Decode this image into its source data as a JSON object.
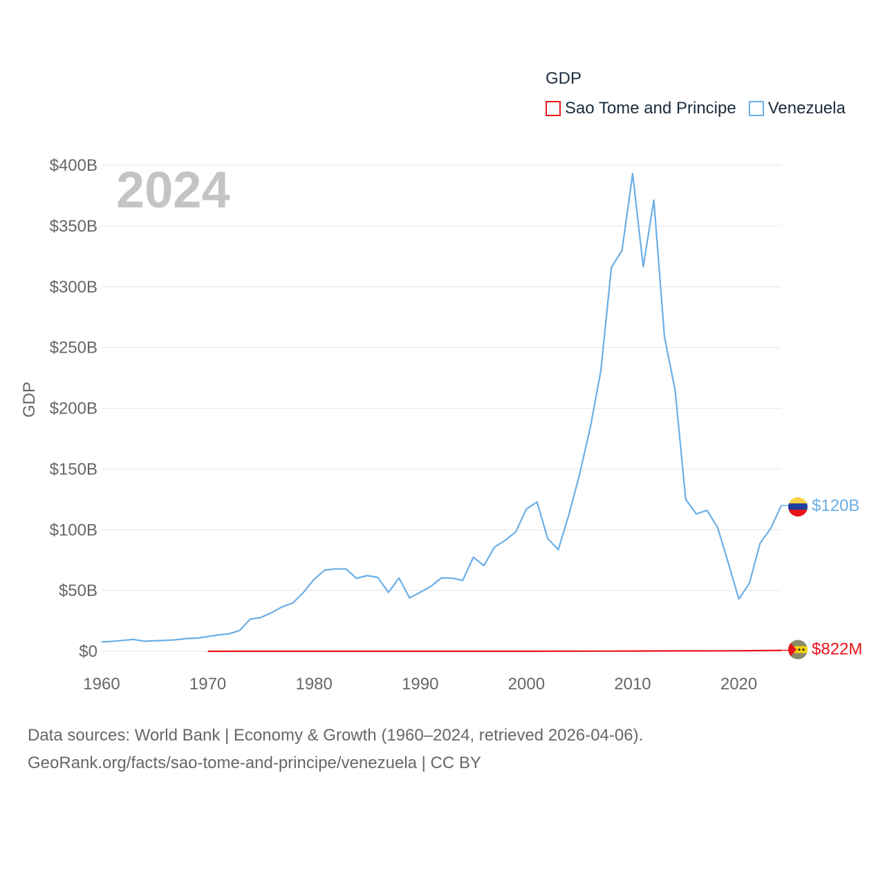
{
  "legend": {
    "title": "GDP",
    "items": [
      {
        "label": "Sao Tome and Principe",
        "color": "#e8141a"
      },
      {
        "label": "Venezuela",
        "color": "#6aaee6"
      }
    ]
  },
  "year_watermark": "2024",
  "footer": {
    "line1": "Data sources: World Bank | Economy & Growth (1960–2024, retrieved 2026-04-06).",
    "line2": "GeoRank.org/facts/sao-tome-and-principe/venezuela | CC BY"
  },
  "chart_data": {
    "type": "line",
    "title": "",
    "xlabel": "",
    "ylabel": "GDP",
    "xlim": [
      1960,
      2024
    ],
    "ylim": [
      0,
      400
    ],
    "y_unit": "billion USD",
    "grid": true,
    "x_ticks": [
      1960,
      1970,
      1980,
      1990,
      2000,
      2010,
      2020
    ],
    "x_tick_labels": [
      "1960",
      "1970",
      "1980",
      "1990",
      "2000",
      "2010",
      "2020"
    ],
    "y_ticks": [
      0,
      50,
      100,
      150,
      200,
      250,
      300,
      350,
      400
    ],
    "y_tick_labels": [
      "$0",
      "$50B",
      "$100B",
      "$150B",
      "$200B",
      "$250B",
      "$300B",
      "$350B",
      "$400B"
    ],
    "series": [
      {
        "name": "Venezuela",
        "color": "#6aaee6",
        "end_label": "$120B",
        "x": [
          1960,
          1961,
          1962,
          1963,
          1964,
          1965,
          1966,
          1967,
          1968,
          1969,
          1970,
          1971,
          1972,
          1973,
          1974,
          1975,
          1976,
          1977,
          1978,
          1979,
          1980,
          1981,
          1982,
          1983,
          1984,
          1985,
          1986,
          1987,
          1988,
          1989,
          1990,
          1991,
          1992,
          1993,
          1994,
          1995,
          1996,
          1997,
          1998,
          1999,
          2000,
          2001,
          2002,
          2003,
          2004,
          2005,
          2006,
          2007,
          2008,
          2009,
          2010,
          2011,
          2012,
          2013,
          2014,
          2015,
          2016,
          2017,
          2018,
          2019,
          2020,
          2021,
          2022,
          2023,
          2024
        ],
        "values": [
          7.8,
          8.2,
          9.0,
          9.8,
          8.3,
          8.6,
          9.0,
          9.5,
          10.5,
          10.8,
          12.2,
          13.4,
          14.4,
          17.2,
          26.5,
          27.8,
          31.8,
          36.6,
          39.7,
          48.4,
          59.3,
          66.8,
          67.8,
          67.8,
          60.1,
          62.3,
          60.9,
          48.5,
          60.3,
          43.9,
          48.6,
          53.4,
          60.4,
          60.2,
          58.4,
          77.4,
          70.5,
          85.8,
          91.3,
          98.4,
          117.1,
          122.9,
          92.9,
          83.6,
          112.5,
          145.5,
          183.5,
          230.4,
          316.0,
          329.8,
          393.2,
          316.5,
          371.3,
          258.9,
          215.0,
          125.0,
          113.0,
          116.0,
          102.0,
          73.0,
          43.0,
          56.0,
          89.0,
          101.0,
          120.0
        ]
      },
      {
        "name": "Sao Tome and Principe",
        "color": "#e8141a",
        "end_label": "$822M",
        "x": [
          1970,
          1975,
          1980,
          1985,
          1990,
          1995,
          2000,
          2005,
          2010,
          2015,
          2018,
          2020,
          2022,
          2023,
          2024
        ],
        "values": [
          0.02,
          0.03,
          0.05,
          0.06,
          0.08,
          0.06,
          0.08,
          0.12,
          0.2,
          0.32,
          0.41,
          0.47,
          0.55,
          0.68,
          0.822
        ]
      }
    ]
  }
}
